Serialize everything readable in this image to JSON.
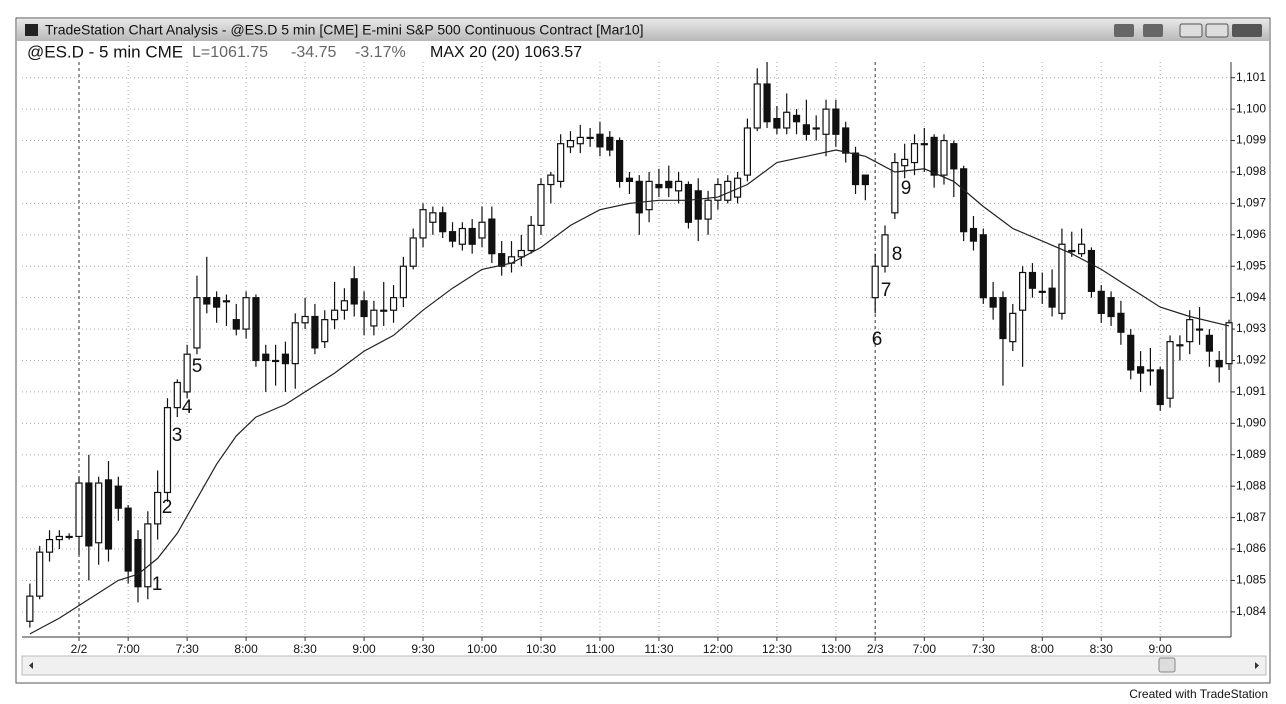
{
  "window": {
    "title": "TradeStation Chart Analysis - @ES.D 5 min [CME] E-mini S&P 500 Continuous Contract [Mar10]",
    "footer": "Created with TradeStation"
  },
  "chart_data": {
    "type": "candlestick",
    "header": {
      "symbol": "@ES.D - 5 min CME",
      "last": "L=1061.75",
      "change": "-34.75",
      "change_pct": "-3.17%",
      "study": "MAX 20 (20) 1063.57"
    },
    "up_color": "#ffffff",
    "down_color": "#111111",
    "line_color": "#222222",
    "open": [
      1083.7,
      1084.5,
      1085.9,
      1086.3,
      1086.4,
      1086.4,
      1088.1,
      1086.2,
      1088.2,
      1088.0,
      1087.3,
      1086.3,
      1084.8,
      1086.8,
      1087.8,
      1090.5,
      1091.0,
      1092.4,
      1094.0,
      1094.0,
      1093.9,
      1093.3,
      1093.0,
      1094.0,
      1092.2,
      1092.0,
      1092.2,
      1091.9,
      1093.2,
      1093.4,
      1092.6,
      1093.3,
      1093.6,
      1094.6,
      1093.9,
      1093.1,
      1093.6,
      1093.6,
      1094.0,
      1095.0,
      1095.9,
      1096.4,
      1096.7,
      1096.1,
      1095.7,
      1096.2,
      1095.9,
      1096.5,
      1095.4,
      1095.1,
      1095.3,
      1095.5,
      1096.3,
      1097.6,
      1097.7,
      1098.8,
      1098.9,
      1099.1,
      1099.2,
      1099.1,
      1099.0,
      1097.8,
      1097.7,
      1096.8,
      1097.6,
      1097.7,
      1097.4,
      1097.6,
      1097.4,
      1096.5,
      1097.1,
      1097.1,
      1097.2,
      1097.9,
      1099.4,
      1100.8,
      1099.7,
      1099.4,
      1099.8,
      1099.5,
      1099.4,
      1099.2,
      1100.0,
      1099.4,
      1098.6,
      1097.9,
      1094.0,
      1095.0,
      1096.7,
      1098.2,
      1098.3,
      1098.9,
      1099.1,
      1097.9,
      1098.9,
      1098.1,
      1096.2,
      1096.0,
      1094.0,
      1094.0,
      1092.6,
      1093.6,
      1094.8,
      1094.2,
      1094.3,
      1093.5,
      1095.5,
      1095.4,
      1095.5,
      1094.2,
      1094.0,
      1093.5,
      1092.8,
      1091.8,
      1091.7,
      1091.7,
      1090.8,
      1092.5,
      1092.6,
      1093.0,
      1092.8,
      1092.0,
      1091.9
    ],
    "high": [
      1084.9,
      1086.1,
      1086.6,
      1086.6,
      1086.5,
      1088.3,
      1089.0,
      1088.3,
      1088.8,
      1088.3,
      1087.4,
      1086.6,
      1087.2,
      1088.5,
      1090.8,
      1091.4,
      1092.5,
      1094.7,
      1095.3,
      1094.2,
      1094.1,
      1093.8,
      1094.2,
      1094.1,
      1092.5,
      1092.5,
      1092.6,
      1093.5,
      1094.0,
      1093.8,
      1093.6,
      1094.5,
      1094.3,
      1095.0,
      1094.2,
      1093.9,
      1094.5,
      1094.4,
      1095.3,
      1096.2,
      1097.0,
      1096.9,
      1096.9,
      1096.4,
      1096.4,
      1096.5,
      1096.9,
      1096.9,
      1095.8,
      1095.8,
      1096.0,
      1096.6,
      1097.8,
      1098.0,
      1099.2,
      1099.3,
      1099.5,
      1099.4,
      1099.6,
      1099.3,
      1099.1,
      1098.0,
      1097.9,
      1098.0,
      1098.1,
      1098.2,
      1098.0,
      1097.7,
      1097.8,
      1097.4,
      1097.8,
      1097.9,
      1098.0,
      1099.7,
      1101.3,
      1101.5,
      1100.1,
      1100.5,
      1100.0,
      1100.3,
      1099.8,
      1100.3,
      1100.3,
      1099.6,
      1098.8,
      1097.9,
      1095.4,
      1096.3,
      1098.6,
      1098.9,
      1099.2,
      1099.4,
      1099.2,
      1099.2,
      1099.0,
      1098.2,
      1096.6,
      1096.2,
      1094.5,
      1094.2,
      1093.8,
      1095.0,
      1095.1,
      1094.8,
      1094.9,
      1096.2,
      1096.1,
      1096.2,
      1095.6,
      1094.4,
      1094.2,
      1093.9,
      1093.0,
      1092.3,
      1092.4,
      1091.8,
      1092.8,
      1092.8,
      1093.6,
      1093.7,
      1093.0,
      1092.3,
      1093.3
    ],
    "low": [
      1083.5,
      1084.4,
      1085.6,
      1086.0,
      1086.3,
      1085.8,
      1085.0,
      1085.5,
      1085.6,
      1086.9,
      1084.9,
      1084.3,
      1084.4,
      1086.3,
      1087.5,
      1090.2,
      1090.8,
      1092.2,
      1093.5,
      1093.2,
      1093.1,
      1092.8,
      1092.7,
      1091.8,
      1091.0,
      1091.2,
      1091.0,
      1091.1,
      1093.0,
      1092.2,
      1092.4,
      1093.0,
      1093.3,
      1093.4,
      1092.8,
      1092.8,
      1093.1,
      1093.2,
      1093.7,
      1094.9,
      1095.6,
      1096.0,
      1095.9,
      1095.6,
      1095.5,
      1095.4,
      1095.6,
      1095.1,
      1094.7,
      1094.8,
      1095.0,
      1095.4,
      1096.0,
      1097.0,
      1097.5,
      1098.6,
      1098.6,
      1098.8,
      1098.5,
      1098.5,
      1097.5,
      1097.3,
      1096.0,
      1096.4,
      1097.2,
      1097.2,
      1097.0,
      1096.2,
      1095.8,
      1096.0,
      1096.8,
      1097.0,
      1097.0,
      1097.7,
      1099.3,
      1099.4,
      1099.2,
      1099.2,
      1099.2,
      1099.0,
      1099.0,
      1098.5,
      1098.8,
      1098.3,
      1097.3,
      1097.1,
      1093.5,
      1094.8,
      1096.5,
      1097.8,
      1097.9,
      1098.0,
      1097.5,
      1097.6,
      1097.2,
      1095.8,
      1095.5,
      1093.8,
      1093.3,
      1091.2,
      1092.3,
      1091.8,
      1094.0,
      1093.8,
      1093.4,
      1093.3,
      1095.3,
      1095.3,
      1094.0,
      1093.2,
      1093.1,
      1092.5,
      1091.4,
      1091.0,
      1091.2,
      1090.4,
      1090.5,
      1092.0,
      1092.2,
      1092.5,
      1091.8,
      1091.3,
      1091.7
    ],
    "close": [
      1084.5,
      1085.9,
      1086.3,
      1086.4,
      1086.4,
      1088.1,
      1086.1,
      1088.1,
      1086.0,
      1087.3,
      1085.3,
      1084.8,
      1086.8,
      1087.8,
      1090.5,
      1091.3,
      1092.2,
      1094.0,
      1093.8,
      1093.7,
      1093.9,
      1093.0,
      1094.0,
      1092.0,
      1092.0,
      1092.0,
      1091.9,
      1093.2,
      1093.4,
      1092.4,
      1093.3,
      1093.6,
      1093.9,
      1093.8,
      1093.4,
      1093.6,
      1093.6,
      1094.0,
      1095.0,
      1095.9,
      1096.8,
      1096.7,
      1096.1,
      1095.8,
      1096.2,
      1095.7,
      1096.4,
      1095.4,
      1095.0,
      1095.3,
      1095.5,
      1096.3,
      1097.6,
      1097.9,
      1098.9,
      1099.0,
      1099.1,
      1099.1,
      1098.8,
      1098.7,
      1097.7,
      1097.7,
      1096.7,
      1097.7,
      1097.5,
      1097.5,
      1097.7,
      1096.4,
      1096.5,
      1097.1,
      1097.6,
      1097.7,
      1097.8,
      1099.4,
      1100.8,
      1099.6,
      1099.4,
      1099.9,
      1099.6,
      1099.2,
      1099.4,
      1100.0,
      1099.2,
      1098.6,
      1097.6,
      1097.6,
      1095.0,
      1096.0,
      1098.3,
      1098.4,
      1098.9,
      1098.9,
      1097.9,
      1099.0,
      1098.1,
      1096.1,
      1095.8,
      1094.0,
      1093.7,
      1092.7,
      1093.5,
      1094.8,
      1094.3,
      1094.2,
      1093.7,
      1095.7,
      1095.5,
      1095.7,
      1094.2,
      1093.5,
      1093.4,
      1092.9,
      1091.7,
      1091.6,
      1091.7,
      1090.6,
      1092.6,
      1092.5,
      1093.3,
      1093.0,
      1092.3,
      1091.8,
      1093.2
    ],
    "ma": {
      "x": [
        0,
        3,
        6,
        9,
        11,
        13,
        15,
        17,
        19,
        21,
        23,
        26,
        28,
        31,
        34,
        37,
        40,
        43,
        46,
        49,
        52,
        55,
        58,
        61,
        64,
        67,
        70,
        73,
        76,
        79,
        82,
        85,
        88,
        91,
        94,
        97,
        100,
        103,
        106,
        109,
        112,
        115,
        118,
        122
      ],
      "values": [
        1083.3,
        1083.8,
        1084.4,
        1085.0,
        1085.2,
        1085.7,
        1086.5,
        1087.6,
        1088.7,
        1089.6,
        1090.2,
        1090.6,
        1091.0,
        1091.6,
        1092.3,
        1092.8,
        1093.6,
        1094.3,
        1094.9,
        1095.1,
        1095.6,
        1096.3,
        1096.8,
        1097.0,
        1097.1,
        1097.1,
        1097.2,
        1097.6,
        1098.3,
        1098.5,
        1098.7,
        1098.5,
        1098.0,
        1098.1,
        1097.7,
        1096.9,
        1096.2,
        1095.8,
        1095.4,
        1094.9,
        1094.3,
        1093.7,
        1093.4,
        1093.1
      ]
    },
    "annotations": [
      "1",
      "2",
      "3",
      "4",
      "5",
      "6",
      "7",
      "8",
      "9"
    ],
    "xlim": [
      -0.8,
      122.2
    ],
    "xticks": [
      {
        "value": 5,
        "label": "2/2"
      },
      {
        "value": 10,
        "label": "7:00"
      },
      {
        "value": 16,
        "label": "7:30"
      },
      {
        "value": 22,
        "label": "8:00"
      },
      {
        "value": 28,
        "label": "8:30"
      },
      {
        "value": 34,
        "label": "9:00"
      },
      {
        "value": 40,
        "label": "9:30"
      },
      {
        "value": 46,
        "label": "10:00"
      },
      {
        "value": 52,
        "label": "10:30"
      },
      {
        "value": 58,
        "label": "11:00"
      },
      {
        "value": 64,
        "label": "11:30"
      },
      {
        "value": 70,
        "label": "12:00"
      },
      {
        "value": 76,
        "label": "12:30"
      },
      {
        "value": 82,
        "label": "13:00"
      },
      {
        "value": 86,
        "label": "2/3"
      },
      {
        "value": 91,
        "label": "7:00"
      },
      {
        "value": 97,
        "label": "7:30"
      },
      {
        "value": 103,
        "label": "8:00"
      },
      {
        "value": 109,
        "label": "8:30"
      },
      {
        "value": 115,
        "label": "9:00"
      }
    ],
    "ylim": [
      1083.2,
      1101.5
    ],
    "yticks": [
      {
        "value": 1084,
        "label": "1,084"
      },
      {
        "value": 1085,
        "label": "1,085"
      },
      {
        "value": 1086,
        "label": "1,086"
      },
      {
        "value": 1087,
        "label": "1,087"
      },
      {
        "value": 1088,
        "label": "1,088"
      },
      {
        "value": 1089,
        "label": "1,089"
      },
      {
        "value": 1090,
        "label": "1,090"
      },
      {
        "value": 1091,
        "label": "1,091"
      },
      {
        "value": 1092,
        "label": "1,092"
      },
      {
        "value": 1093,
        "label": "1,093"
      },
      {
        "value": 1094,
        "label": "1,094"
      },
      {
        "value": 1095,
        "label": "1,095"
      },
      {
        "value": 1096,
        "label": "1,096"
      },
      {
        "value": 1097,
        "label": "1,097"
      },
      {
        "value": 1098,
        "label": "1,098"
      },
      {
        "value": 1099,
        "label": "1,099"
      },
      {
        "value": 1100,
        "label": "1,100"
      },
      {
        "value": 1101,
        "label": "1,101"
      }
    ],
    "grid": true
  }
}
